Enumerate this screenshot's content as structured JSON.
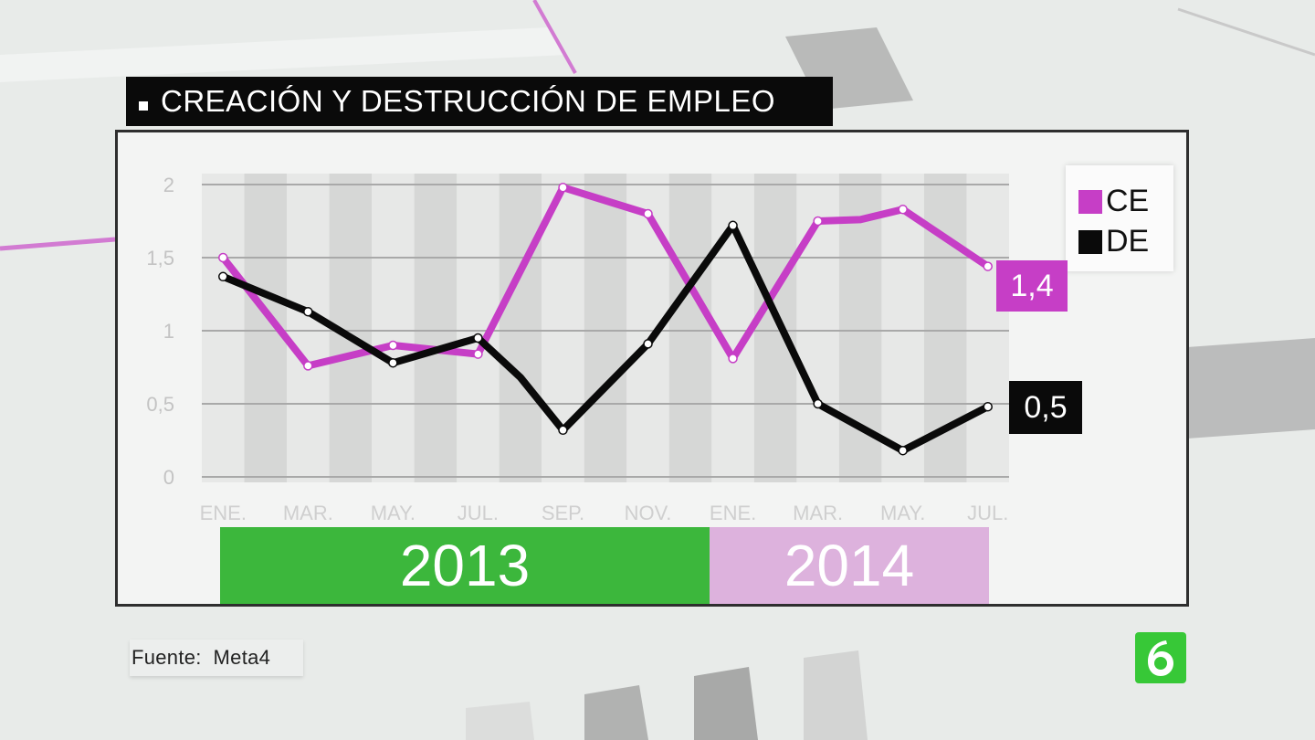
{
  "title": "CREACIÓN Y DESTRUCCIÓN DE EMPLEO",
  "source": "Fuente:  Meta4",
  "colors": {
    "ce": "#c63ec6",
    "de": "#0a0a0a",
    "year_2013": "#3cb73c",
    "year_2014": "#ddb2dd"
  },
  "chart_data": {
    "type": "line",
    "title": "CREACIÓN Y DESTRUCCIÓN DE EMPLEO",
    "xlabel": "",
    "ylabel": "",
    "ylim": [
      0,
      2
    ],
    "y_ticks": [
      "2",
      "1,5",
      "1",
      "0,5",
      "0"
    ],
    "x_tick_labels": [
      "ENE.",
      "MAR.",
      "MAY.",
      "JUL.",
      "SEP.",
      "NOV.",
      "ENE.",
      "MAR.",
      "MAY.",
      "JUL."
    ],
    "x_tick_months": [
      1,
      3,
      5,
      7,
      9,
      11,
      13,
      15,
      17,
      19
    ],
    "year_bands": [
      {
        "label": "2013",
        "from_month": 1,
        "to_month": 12
      },
      {
        "label": "2014",
        "from_month": 12,
        "to_month": 19
      }
    ],
    "grid": true,
    "legend_position": "top-right",
    "series": [
      {
        "name": "CE",
        "color": "#c63ec6",
        "points": [
          {
            "month": 1,
            "value": 1.5
          },
          {
            "month": 3,
            "value": 0.76
          },
          {
            "month": 5,
            "value": 0.9
          },
          {
            "month": 7,
            "value": 0.84
          },
          {
            "month": 9,
            "value": 1.98
          },
          {
            "month": 11,
            "value": 1.8
          },
          {
            "month": 13,
            "value": 0.81
          },
          {
            "month": 15,
            "value": 1.75
          },
          {
            "month": 16,
            "value": 1.76
          },
          {
            "month": 17,
            "value": 1.83
          },
          {
            "month": 19,
            "value": 1.44
          }
        ],
        "end_label": "1,4"
      },
      {
        "name": "DE",
        "color": "#0a0a0a",
        "points": [
          {
            "month": 1,
            "value": 1.37
          },
          {
            "month": 3,
            "value": 1.13
          },
          {
            "month": 5,
            "value": 0.78
          },
          {
            "month": 7,
            "value": 0.95
          },
          {
            "month": 8,
            "value": 0.68
          },
          {
            "month": 9,
            "value": 0.32
          },
          {
            "month": 11,
            "value": 0.91
          },
          {
            "month": 13,
            "value": 1.72
          },
          {
            "month": 15,
            "value": 0.5
          },
          {
            "month": 17,
            "value": 0.18
          },
          {
            "month": 19,
            "value": 0.48
          }
        ],
        "end_label": "0,5"
      }
    ]
  }
}
